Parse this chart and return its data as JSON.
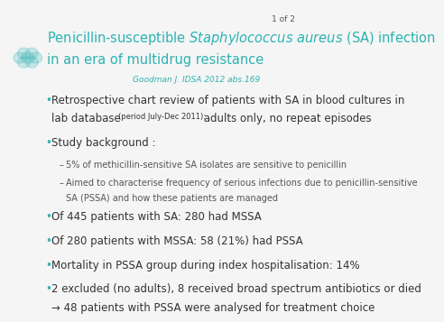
{
  "bg_color": "#f5f5f5",
  "title_color": "#2db3b3",
  "ref_color": "#2db3b3",
  "bullet_color": "#2db3b3",
  "text_color": "#333333",
  "sub_text_color": "#555555",
  "page_num_color": "#555555",
  "page_num": "1 of 2",
  "reference": "Goodman J. IDSA 2012 abs.169",
  "bullets": [
    {
      "level": 1,
      "lines": [
        {
          "text": "Retrospective chart review of patients with SA in blood cultures in",
          "size": 8.5
        },
        {
          "text": "lab database (period July-Dec 2011):  adults only, no repeat episodes",
          "size": 8.5,
          "mixed": true
        }
      ]
    },
    {
      "level": 1,
      "lines": [
        {
          "text": "Study background :",
          "size": 8.5
        }
      ]
    },
    {
      "level": 2,
      "lines": [
        {
          "text": "5% of methicillin-sensitive SA isolates are sensitive to penicillin",
          "size": 7.0
        }
      ]
    },
    {
      "level": 2,
      "lines": [
        {
          "text": "Aimed to characterise frequency of serious infections due to penicillin-sensitive",
          "size": 7.0
        },
        {
          "text": "SA (PSSA) and how these patients are managed",
          "size": 7.0
        }
      ]
    },
    {
      "level": 1,
      "lines": [
        {
          "text": "Of 445 patients with SA: 280 had MSSA",
          "size": 8.5
        }
      ]
    },
    {
      "level": 1,
      "lines": [
        {
          "text": "Of 280 patients with MSSA: 58 (21%) had PSSA",
          "size": 8.5
        }
      ]
    },
    {
      "level": 1,
      "lines": [
        {
          "text": "Mortality in PSSA group during index hospitalisation: 14%",
          "size": 8.5
        }
      ]
    },
    {
      "level": 1,
      "lines": [
        {
          "text": "2 excluded (no adults), 8 received broad spectrum antibiotics or died",
          "size": 8.5
        },
        {
          "text": "→ 48 patients with PSSA were analysed for treatment choice",
          "size": 8.5
        }
      ]
    }
  ]
}
